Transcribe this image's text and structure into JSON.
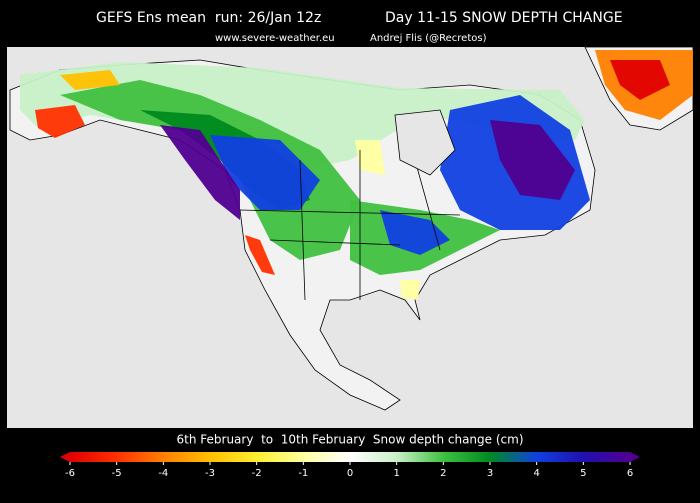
{
  "header": {
    "title": "GEFS Ens mean  run: 26/Jan 12z",
    "product": "Day 11-15 SNOW DEPTH CHANGE",
    "website": "www.severe-weather.eu",
    "author": "Andrej Flis (@Recretos)"
  },
  "legend": {
    "title": "6th February  to  10th February  Snow depth change (cm)",
    "range": [
      -6,
      6
    ],
    "ticks": [
      -6,
      -5,
      -4,
      -3,
      -2,
      -1,
      0,
      1,
      2,
      3,
      4,
      5,
      6
    ],
    "colors": [
      "#e00000",
      "#ff3000",
      "#ff8000",
      "#ffc000",
      "#ffee30",
      "#ffffa0",
      "#ffffff",
      "#c8f0c8",
      "#40c040",
      "#008a20",
      "#1040e0",
      "#2010b0",
      "#500090"
    ]
  }
}
